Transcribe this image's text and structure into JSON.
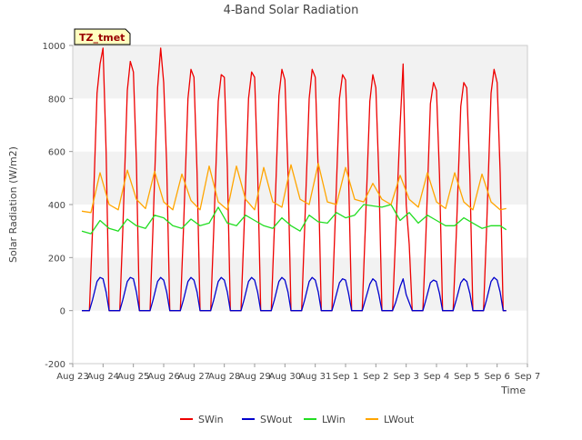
{
  "chart_data": {
    "type": "line",
    "title": "4-Band Solar Radiation",
    "xlabel": "Time",
    "ylabel": "Solar Radiation (W/m2)",
    "ylim": [
      -200,
      1000
    ],
    "yticks": [
      -200,
      0,
      200,
      400,
      600,
      800,
      1000
    ],
    "x_tick_labels": [
      "Aug 23",
      "Aug 24",
      "Aug 25",
      "Aug 26",
      "Aug 27",
      "Aug 28",
      "Aug 29",
      "Aug 30",
      "Aug 31",
      "Sep 1",
      "Sep 2",
      "Sep 3",
      "Sep 4",
      "Sep 5",
      "Sep 6",
      "Sep 7"
    ],
    "x_unit": "day index from Aug 23 (0 = Aug 23, 15 = Sep 7)",
    "xlim": [
      0,
      15
    ],
    "site_label": "TZ_tmet",
    "grid": "horizontal bands",
    "legend_position": "bottom",
    "series": [
      {
        "name": "SWin",
        "color": "#ee0000",
        "x": [
          0.3,
          0.55,
          0.65,
          0.8,
          0.9,
          1.0,
          1.1,
          1.2,
          1.35,
          1.55,
          1.65,
          1.8,
          1.9,
          2.0,
          2.1,
          2.2,
          2.35,
          2.55,
          2.65,
          2.8,
          2.9,
          3.0,
          3.1,
          3.2,
          3.35,
          3.55,
          3.65,
          3.8,
          3.9,
          4.0,
          4.1,
          4.2,
          4.35,
          4.55,
          4.65,
          4.8,
          4.9,
          5.0,
          5.1,
          5.2,
          5.35,
          5.55,
          5.65,
          5.8,
          5.9,
          6.0,
          6.1,
          6.2,
          6.35,
          6.55,
          6.65,
          6.8,
          6.9,
          7.0,
          7.1,
          7.2,
          7.35,
          7.55,
          7.65,
          7.8,
          7.9,
          8.0,
          8.1,
          8.2,
          8.35,
          8.55,
          8.65,
          8.8,
          8.9,
          9.0,
          9.1,
          9.2,
          9.35,
          9.55,
          9.65,
          9.8,
          9.9,
          10.0,
          10.1,
          10.2,
          10.35,
          10.55,
          10.65,
          10.8,
          10.9,
          11.0,
          11.1,
          11.2,
          11.35,
          11.55,
          11.65,
          11.8,
          11.9,
          12.0,
          12.1,
          12.2,
          12.35,
          12.55,
          12.65,
          12.8,
          12.9,
          13.0,
          13.1,
          13.2,
          13.35,
          13.55,
          13.65,
          13.8,
          13.9,
          14.0,
          14.1,
          14.2,
          14.3
        ],
        "y": [
          0,
          0,
          300,
          820,
          930,
          990,
          600,
          0,
          0,
          0,
          300,
          830,
          940,
          900,
          560,
          0,
          0,
          0,
          320,
          840,
          990,
          860,
          550,
          0,
          0,
          0,
          300,
          800,
          910,
          880,
          520,
          0,
          0,
          0,
          300,
          790,
          890,
          880,
          540,
          0,
          0,
          0,
          300,
          800,
          900,
          880,
          530,
          0,
          0,
          0,
          310,
          810,
          910,
          870,
          520,
          0,
          0,
          0,
          310,
          800,
          910,
          880,
          520,
          0,
          0,
          0,
          310,
          800,
          890,
          870,
          510,
          0,
          0,
          0,
          310,
          790,
          890,
          840,
          500,
          0,
          0,
          0,
          280,
          700,
          930,
          400,
          250,
          0,
          0,
          0,
          280,
          780,
          860,
          830,
          510,
          0,
          0,
          0,
          280,
          770,
          860,
          840,
          510,
          0,
          0,
          0,
          300,
          820,
          910,
          860,
          520,
          0,
          0
        ]
      },
      {
        "name": "SWout",
        "color": "#0000cc",
        "x": [
          0.3,
          0.55,
          0.65,
          0.8,
          0.9,
          1.0,
          1.1,
          1.2,
          1.35,
          1.55,
          1.65,
          1.8,
          1.9,
          2.0,
          2.1,
          2.2,
          2.35,
          2.55,
          2.65,
          2.8,
          2.9,
          3.0,
          3.1,
          3.2,
          3.35,
          3.55,
          3.65,
          3.8,
          3.9,
          4.0,
          4.1,
          4.2,
          4.35,
          4.55,
          4.65,
          4.8,
          4.9,
          5.0,
          5.1,
          5.2,
          5.35,
          5.55,
          5.65,
          5.8,
          5.9,
          6.0,
          6.1,
          6.2,
          6.35,
          6.55,
          6.65,
          6.8,
          6.9,
          7.0,
          7.1,
          7.2,
          7.35,
          7.55,
          7.65,
          7.8,
          7.9,
          8.0,
          8.1,
          8.2,
          8.35,
          8.55,
          8.65,
          8.8,
          8.9,
          9.0,
          9.1,
          9.2,
          9.35,
          9.55,
          9.65,
          9.8,
          9.9,
          10.0,
          10.1,
          10.2,
          10.35,
          10.55,
          10.65,
          10.8,
          10.9,
          11.0,
          11.1,
          11.2,
          11.35,
          11.55,
          11.65,
          11.8,
          11.9,
          12.0,
          12.1,
          12.2,
          12.35,
          12.55,
          12.65,
          12.8,
          12.9,
          13.0,
          13.1,
          13.2,
          13.35,
          13.55,
          13.65,
          13.8,
          13.9,
          14.0,
          14.1,
          14.2,
          14.3
        ],
        "y": [
          0,
          0,
          40,
          110,
          125,
          120,
          70,
          0,
          0,
          0,
          40,
          110,
          125,
          120,
          70,
          0,
          0,
          0,
          40,
          110,
          125,
          115,
          70,
          0,
          0,
          0,
          40,
          110,
          125,
          115,
          70,
          0,
          0,
          0,
          40,
          110,
          125,
          115,
          70,
          0,
          0,
          0,
          40,
          110,
          125,
          115,
          70,
          0,
          0,
          0,
          40,
          110,
          125,
          115,
          70,
          0,
          0,
          0,
          40,
          110,
          125,
          115,
          70,
          0,
          0,
          0,
          40,
          105,
          120,
          115,
          65,
          0,
          0,
          0,
          40,
          100,
          120,
          110,
          60,
          0,
          0,
          0,
          30,
          90,
          120,
          60,
          30,
          0,
          0,
          0,
          40,
          105,
          115,
          110,
          65,
          0,
          0,
          0,
          40,
          105,
          120,
          110,
          65,
          0,
          0,
          0,
          40,
          110,
          125,
          115,
          70,
          0,
          0
        ]
      },
      {
        "name": "LWin",
        "color": "#22dd22",
        "x": [
          0.3,
          0.6,
          0.9,
          1.2,
          1.5,
          1.8,
          2.1,
          2.4,
          2.7,
          3.0,
          3.3,
          3.6,
          3.9,
          4.2,
          4.5,
          4.8,
          5.1,
          5.4,
          5.7,
          6.0,
          6.3,
          6.6,
          6.9,
          7.2,
          7.5,
          7.8,
          8.1,
          8.4,
          8.7,
          9.0,
          9.3,
          9.6,
          9.9,
          10.2,
          10.5,
          10.8,
          11.1,
          11.4,
          11.7,
          12.0,
          12.3,
          12.6,
          12.9,
          13.2,
          13.5,
          13.8,
          14.1,
          14.3
        ],
        "y": [
          300,
          290,
          340,
          310,
          300,
          345,
          320,
          310,
          360,
          350,
          320,
          310,
          345,
          320,
          330,
          390,
          330,
          320,
          360,
          340,
          320,
          310,
          350,
          320,
          300,
          360,
          335,
          330,
          370,
          350,
          360,
          400,
          395,
          390,
          400,
          340,
          370,
          330,
          360,
          340,
          320,
          320,
          350,
          330,
          310,
          320,
          320,
          305
        ]
      },
      {
        "name": "LWout",
        "color": "#ffa500",
        "x": [
          0.3,
          0.6,
          0.9,
          1.2,
          1.5,
          1.8,
          2.1,
          2.4,
          2.7,
          3.0,
          3.3,
          3.6,
          3.9,
          4.2,
          4.5,
          4.8,
          5.1,
          5.4,
          5.7,
          6.0,
          6.3,
          6.6,
          6.9,
          7.2,
          7.5,
          7.8,
          8.1,
          8.4,
          8.7,
          9.0,
          9.3,
          9.6,
          9.9,
          10.2,
          10.5,
          10.8,
          11.1,
          11.4,
          11.7,
          12.0,
          12.3,
          12.6,
          12.9,
          13.2,
          13.5,
          13.8,
          14.1,
          14.3
        ],
        "y": [
          375,
          370,
          520,
          400,
          380,
          530,
          420,
          385,
          525,
          410,
          380,
          515,
          415,
          380,
          545,
          410,
          380,
          545,
          420,
          380,
          540,
          410,
          390,
          550,
          420,
          400,
          555,
          410,
          400,
          540,
          420,
          410,
          480,
          420,
          400,
          510,
          420,
          390,
          520,
          410,
          385,
          520,
          410,
          380,
          515,
          410,
          380,
          385
        ]
      }
    ]
  }
}
